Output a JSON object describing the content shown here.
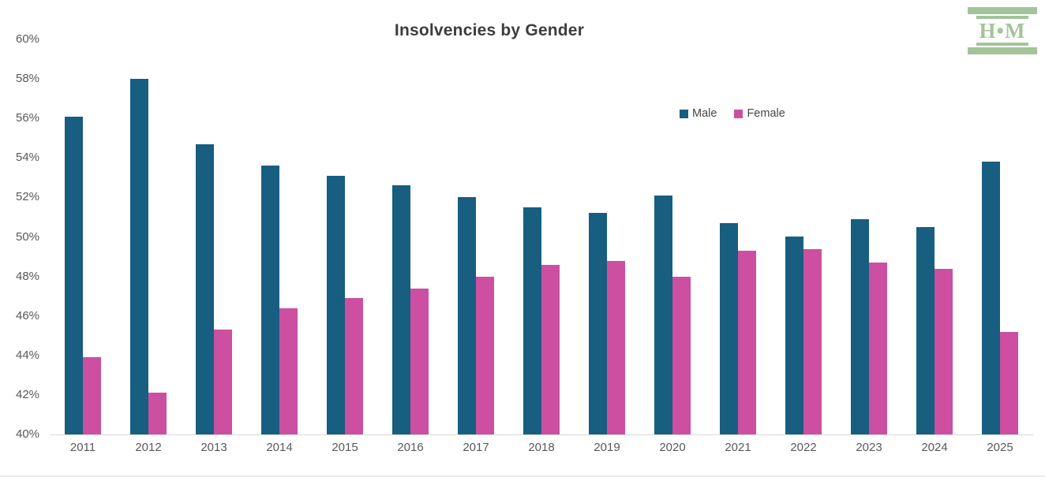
{
  "title": "Insolvencies by Gender",
  "logo": {
    "text": "H•M"
  },
  "legend": {
    "items": [
      {
        "label": "Male"
      },
      {
        "label": "Female"
      }
    ]
  },
  "colors": {
    "male": "#175e80",
    "female": "#cc4fa2",
    "title_text": "#3d3d3d",
    "axis_text": "#595959",
    "axis_line": "#d9d9d9",
    "logo_green": "#a3c49b"
  },
  "chart_data": {
    "type": "bar",
    "title": "Insolvencies by Gender",
    "categories": [
      "2011",
      "2012",
      "2013",
      "2014",
      "2015",
      "2016",
      "2017",
      "2018",
      "2019",
      "2020",
      "2021",
      "2022",
      "2023",
      "2024",
      "2025"
    ],
    "series": [
      {
        "name": "Male",
        "color": "#175e80",
        "values": [
          56.1,
          58.0,
          54.7,
          53.6,
          53.1,
          52.6,
          52.0,
          51.5,
          51.2,
          52.1,
          50.7,
          50.0,
          50.9,
          50.5,
          53.8
        ]
      },
      {
        "name": "Female",
        "color": "#cc4fa2",
        "values": [
          43.9,
          42.1,
          45.3,
          46.4,
          46.9,
          47.4,
          48.0,
          48.6,
          48.8,
          48.0,
          49.3,
          49.4,
          48.7,
          48.4,
          45.2
        ]
      }
    ],
    "xlabel": "",
    "ylabel": "",
    "ylim": [
      40,
      60
    ],
    "ytick_step": 2,
    "yticks": [
      "60%",
      "58%",
      "56%",
      "54%",
      "52%",
      "50%",
      "48%",
      "46%",
      "44%",
      "42%",
      "40%"
    ],
    "value_format": "percent",
    "grid": false,
    "legend_position": "upper-right-inside"
  }
}
